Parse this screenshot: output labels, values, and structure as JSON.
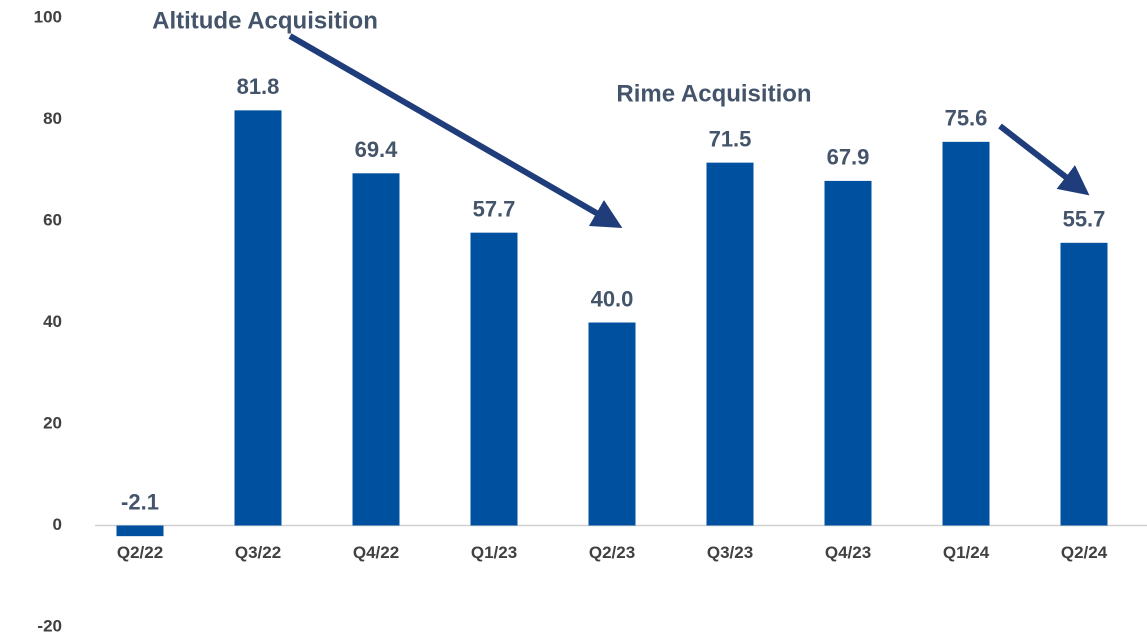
{
  "chart_data": {
    "type": "bar",
    "categories": [
      "Q2/22",
      "Q3/22",
      "Q4/22",
      "Q1/23",
      "Q2/23",
      "Q3/23",
      "Q4/23",
      "Q1/24",
      "Q2/24"
    ],
    "values": [
      -2.1,
      81.8,
      69.4,
      57.7,
      40.0,
      71.5,
      67.9,
      75.6,
      55.7
    ],
    "value_labels": [
      "-2.1",
      "81.8",
      "69.4",
      "57.7",
      "40.0",
      "71.5",
      "67.9",
      "75.6",
      "55.7"
    ],
    "color": "#0050a0",
    "ylim": [
      -20,
      100
    ],
    "yticks": [
      -20,
      0,
      20,
      40,
      60,
      80,
      100
    ],
    "grid": false,
    "annotations": [
      "Altitude Acquisition",
      "Rime Acquisition"
    ]
  }
}
